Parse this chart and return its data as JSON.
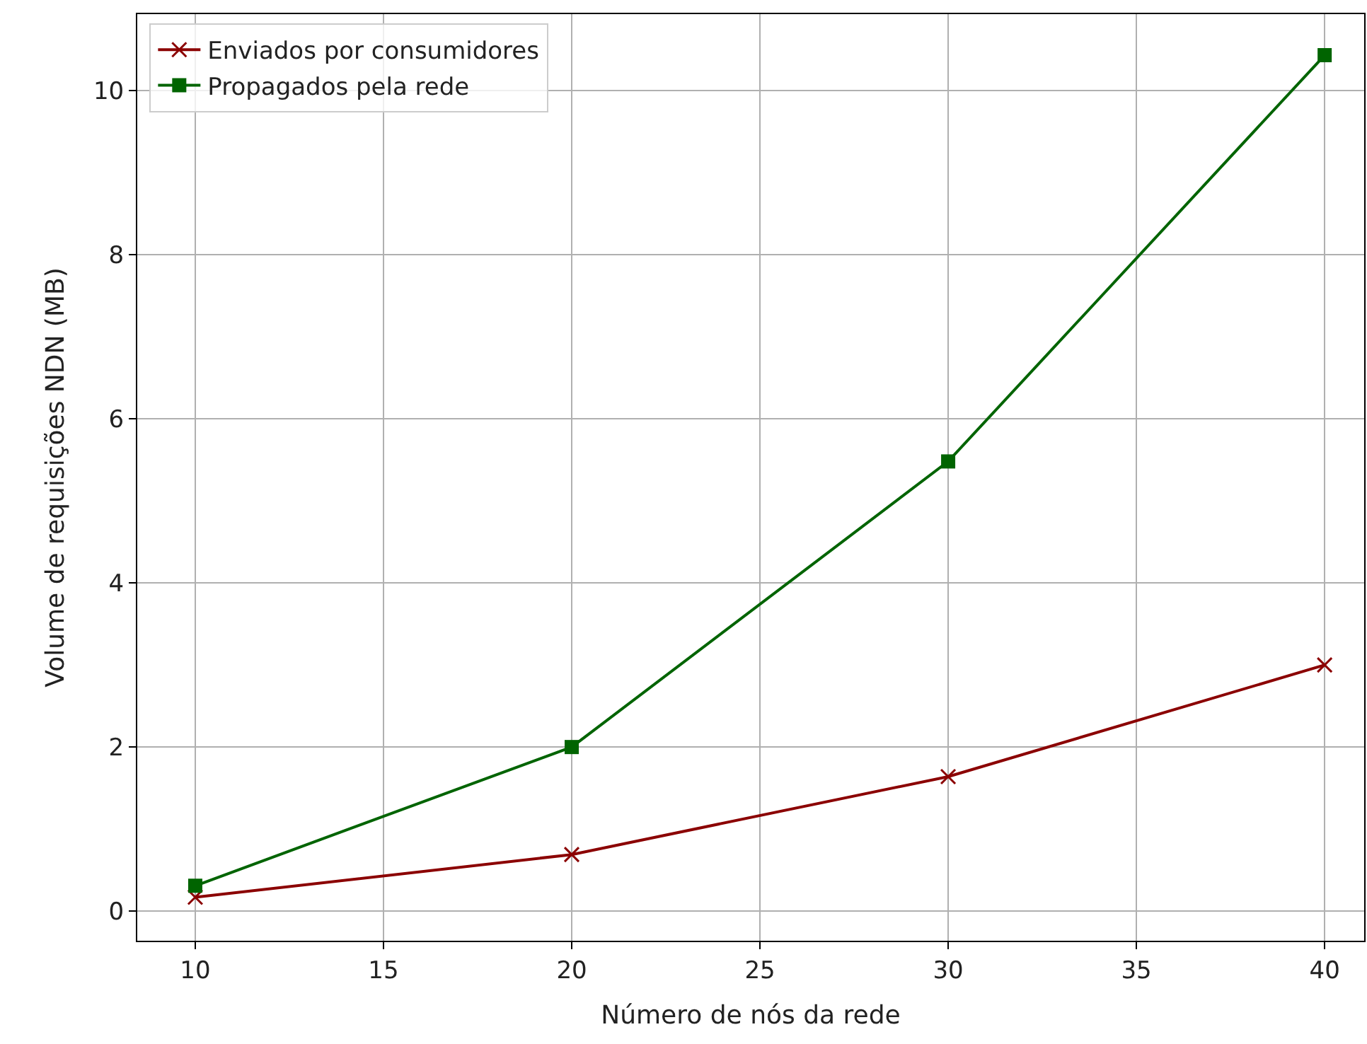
{
  "chart_data": {
    "type": "line",
    "xlabel": "Número de nós da rede",
    "ylabel": "Volume de requisições NDN (MB)",
    "x": [
      10,
      20,
      30,
      40
    ],
    "series": [
      {
        "name": "Enviados por consumidores",
        "color": "#8b0000",
        "marker": "cross",
        "values": [
          0.17,
          0.69,
          1.64,
          3.0
        ]
      },
      {
        "name": "Propagados pela rede",
        "color": "#006400",
        "marker": "square",
        "values": [
          0.31,
          2.0,
          5.48,
          10.43
        ]
      }
    ],
    "xlim": [
      8.46,
      41.05
    ],
    "ylim": [
      -0.36,
      10.93
    ],
    "xticks": [
      10,
      15,
      20,
      25,
      30,
      35,
      40
    ],
    "yticks": [
      0,
      2,
      4,
      6,
      8,
      10
    ],
    "grid": true,
    "legend": "top left",
    "line_style": "solid"
  }
}
